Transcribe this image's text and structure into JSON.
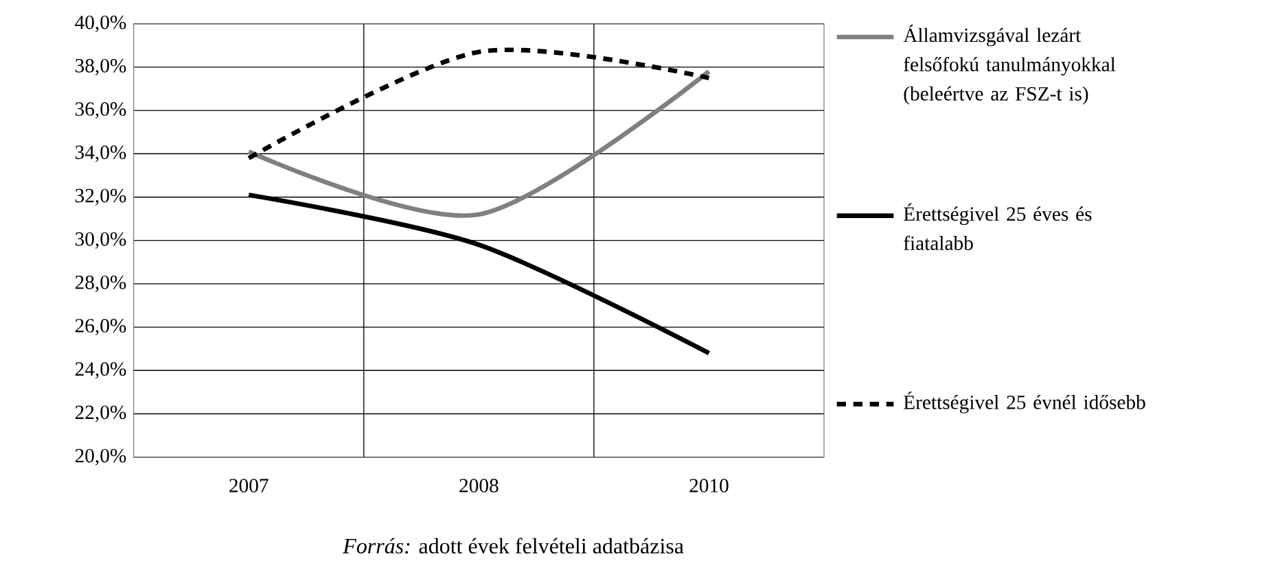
{
  "chart_data": {
    "type": "line",
    "categories": [
      "2007",
      "2008",
      "2010"
    ],
    "series": [
      {
        "name": "Államvizsgával lezárt felsőfokú tanulmányokkal (beleértve az FSZ-t is)",
        "color": "#808080",
        "values": [
          34.1,
          31.2,
          37.8
        ],
        "line_style": "solid"
      },
      {
        "name": "Érettségivel 25 éves és fiatalabb",
        "color": "#000000",
        "values": [
          32.1,
          29.8,
          24.8
        ],
        "line_style": "solid"
      },
      {
        "name": "Érettségivel 25 évnél idősebb",
        "color": "#000000",
        "values": [
          33.8,
          38.7,
          37.5
        ],
        "line_style": "dashed"
      }
    ],
    "ylim": [
      20,
      40
    ],
    "yticks": [
      {
        "value": 20,
        "label": "20,0%"
      },
      {
        "value": 22,
        "label": "22,0%"
      },
      {
        "value": 24,
        "label": "24,0%"
      },
      {
        "value": 26,
        "label": "26,0%"
      },
      {
        "value": 28,
        "label": "28,0%"
      },
      {
        "value": 30,
        "label": "30,0%"
      },
      {
        "value": 32,
        "label": "32,0%"
      },
      {
        "value": 34,
        "label": "34,0%"
      },
      {
        "value": 36,
        "label": "36,0%"
      },
      {
        "value": 38,
        "label": "38,0%"
      },
      {
        "value": 40,
        "label": "40,0%"
      }
    ],
    "grid": true,
    "legend": "right",
    "marker": "none",
    "annotations": [
      "*Forrás:* adott évek felvételi adatbázisa"
    ]
  }
}
